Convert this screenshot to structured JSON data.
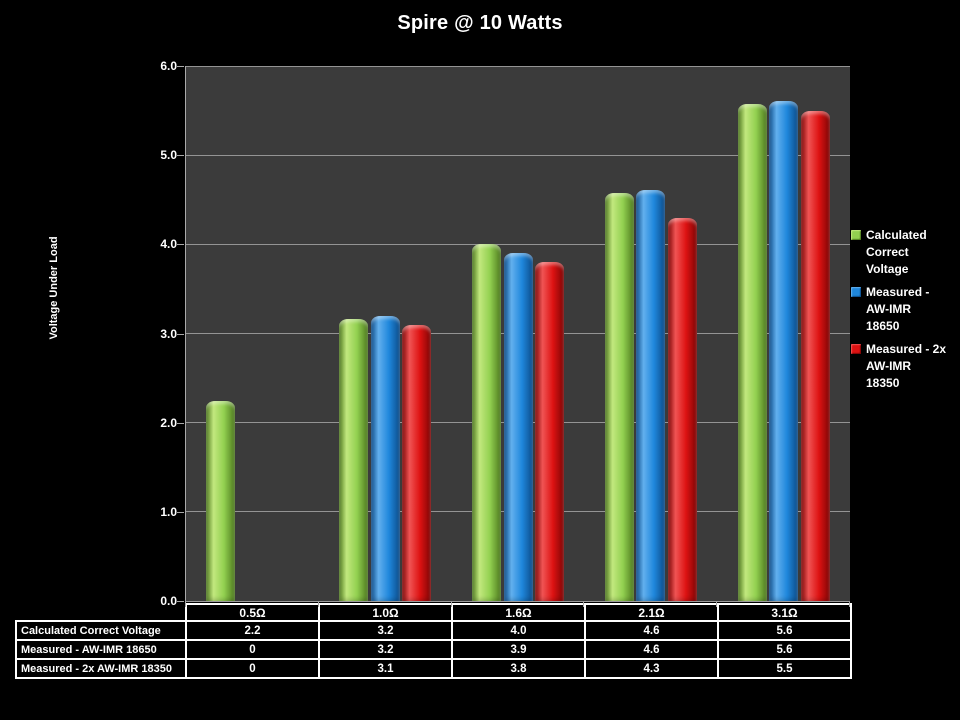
{
  "title": "Spire @ 10 Watts",
  "colors": {
    "background": "#000000",
    "plot_background": "#3B3B3B",
    "gridline": "#949494",
    "axis": "#A9A9A9",
    "text": "#FFFFFF",
    "table_border": "#FFFFFF",
    "series_green": "#92D050",
    "series_blue": "#1F87DC",
    "series_red": "#DD1212"
  },
  "chart_data": {
    "type": "bar",
    "title": "Spire @ 10 Watts",
    "categories": [
      "0.5Ω",
      "1.0Ω",
      "1.6Ω",
      "2.1Ω",
      "3.1Ω"
    ],
    "series": [
      {
        "name": "Calculated Correct Voltage",
        "color": "#92D050",
        "color_light": "#C2E87E",
        "color_dark": "#4E7A1E",
        "values": [
          2.2,
          3.2,
          4.0,
          4.6,
          5.6
        ],
        "bar_values": [
          2.24,
          3.16,
          4.0,
          4.58,
          5.57
        ]
      },
      {
        "name": "Measured - AW-IMR 18650",
        "color": "#1F87DC",
        "color_light": "#62B0EE",
        "color_dark": "#0C4C8A",
        "values": [
          0,
          3.2,
          3.9,
          4.6,
          5.6
        ],
        "bar_values": [
          0,
          3.2,
          3.9,
          4.61,
          5.61
        ]
      },
      {
        "name": "Measured - 2x AW-IMR 18350",
        "color": "#DD1212",
        "color_light": "#F05454",
        "color_dark": "#7E0505",
        "values": [
          0,
          3.1,
          3.8,
          4.3,
          5.5
        ],
        "bar_values": [
          0,
          3.1,
          3.8,
          4.29,
          5.5
        ]
      }
    ],
    "xlabel": "",
    "ylabel": "Voltage Under Load",
    "ylim": [
      0.0,
      6.0
    ],
    "yticks": [
      "6.0",
      "5.0",
      "4.0",
      "3.0",
      "2.0",
      "1.0",
      "0.0"
    ],
    "grid": true,
    "legend_position": "right"
  },
  "legend": {
    "items": [
      {
        "lines": [
          "Calculated",
          "Correct",
          "Voltage"
        ],
        "color": "#92D050",
        "color_light": "#C2E87E",
        "color_dark": "#4E7A1E"
      },
      {
        "lines": [
          "Measured -",
          "AW-IMR",
          "18650"
        ],
        "color": "#1F87DC",
        "color_light": "#62B0EE",
        "color_dark": "#0C4C8A"
      },
      {
        "lines": [
          "Measured - 2x",
          "AW-IMR",
          "18350"
        ],
        "color": "#DD1212",
        "color_light": "#F05454",
        "color_dark": "#7E0505"
      }
    ]
  },
  "table": {
    "header": [
      "0.5Ω",
      "1.0Ω",
      "1.6Ω",
      "2.1Ω",
      "3.1Ω"
    ],
    "rows": [
      {
        "label": "Calculated Correct Voltage",
        "values": [
          "2.2",
          "3.2",
          "4.0",
          "4.6",
          "5.6"
        ]
      },
      {
        "label": "Measured - AW-IMR 18650",
        "values": [
          "0",
          "3.2",
          "3.9",
          "4.6",
          "5.6"
        ]
      },
      {
        "label": "Measured - 2x AW-IMR 18350",
        "values": [
          "0",
          "3.1",
          "3.8",
          "4.3",
          "5.5"
        ]
      }
    ]
  }
}
